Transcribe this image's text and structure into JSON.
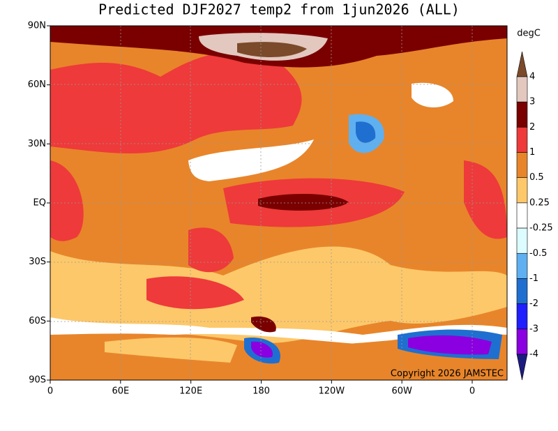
{
  "title": "Predicted DJF2027 temp2 from 1jun2026 (ALL)",
  "unit": "degC",
  "x_axis": {
    "labels": [
      "0",
      "60E",
      "120E",
      "180",
      "120W",
      "60W",
      "0"
    ]
  },
  "y_axis": {
    "labels": [
      "90N",
      "60N",
      "30N",
      "EQ",
      "30S",
      "60S",
      "90S"
    ]
  },
  "colorbar": {
    "levels": [
      "4",
      "3",
      "2",
      "1",
      "0.5",
      "0.25",
      "-0.25",
      "-0.5",
      "-1",
      "-2",
      "-3",
      "-4"
    ],
    "colors": [
      "#7b4a2a",
      "#e2c8bf",
      "#7a0000",
      "#ee3a3a",
      "#e8852a",
      "#fdc86a",
      "#ffffff",
      "#dcfcff",
      "#5fb0f0",
      "#1f6fd0",
      "#2020ff",
      "#8a00e0",
      "#1c1c80"
    ]
  },
  "copyright": "Copyright 2026 JAMSTEC"
}
